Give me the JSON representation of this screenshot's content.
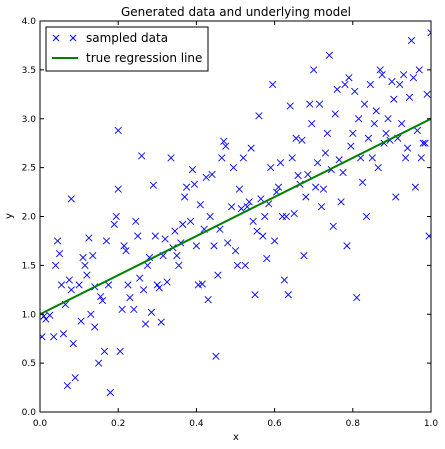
{
  "chart_data": {
    "type": "scatter",
    "title": "Generated data and underlying model",
    "xlabel": "x",
    "ylabel": "y",
    "xlim": [
      0.0,
      1.0
    ],
    "ylim": [
      0.0,
      4.0
    ],
    "xticks": [
      "0.0",
      "0.2",
      "0.4",
      "0.6",
      "0.8",
      "1.0"
    ],
    "yticks": [
      "0.0",
      "0.5",
      "1.0",
      "1.5",
      "2.0",
      "2.5",
      "3.0",
      "3.5",
      "4.0"
    ],
    "grid": false,
    "legend_position": "top-left",
    "series": [
      {
        "name": "sampled data",
        "kind": "scatter",
        "marker": "x",
        "color": "#0000ff",
        "points": [
          [
            0.005,
            0.77
          ],
          [
            0.01,
            0.98
          ],
          [
            0.015,
            0.95
          ],
          [
            0.025,
            0.99
          ],
          [
            0.035,
            0.77
          ],
          [
            0.04,
            1.5
          ],
          [
            0.045,
            1.75
          ],
          [
            0.05,
            1.62
          ],
          [
            0.055,
            1.3
          ],
          [
            0.06,
            0.8
          ],
          [
            0.065,
            1.1
          ],
          [
            0.07,
            0.27
          ],
          [
            0.075,
            1.35
          ],
          [
            0.08,
            1.25
          ],
          [
            0.085,
            0.7
          ],
          [
            0.08,
            2.18
          ],
          [
            0.09,
            0.35
          ],
          [
            0.1,
            1.3
          ],
          [
            0.105,
            0.93
          ],
          [
            0.11,
            1.58
          ],
          [
            0.115,
            1.5
          ],
          [
            0.12,
            1.4
          ],
          [
            0.125,
            1.78
          ],
          [
            0.13,
            1.0
          ],
          [
            0.135,
            1.6
          ],
          [
            0.14,
            1.28
          ],
          [
            0.14,
            0.87
          ],
          [
            0.15,
            0.5
          ],
          [
            0.155,
            1.18
          ],
          [
            0.16,
            1.14
          ],
          [
            0.165,
            0.62
          ],
          [
            0.17,
            1.75
          ],
          [
            0.175,
            1.3
          ],
          [
            0.18,
            0.2
          ],
          [
            0.19,
            1.92
          ],
          [
            0.195,
            2.0
          ],
          [
            0.2,
            2.28
          ],
          [
            0.2,
            2.88
          ],
          [
            0.205,
            0.62
          ],
          [
            0.21,
            1.05
          ],
          [
            0.215,
            1.7
          ],
          [
            0.22,
            1.65
          ],
          [
            0.225,
            1.3
          ],
          [
            0.23,
            1.17
          ],
          [
            0.24,
            1.05
          ],
          [
            0.245,
            1.95
          ],
          [
            0.25,
            1.8
          ],
          [
            0.255,
            1.37
          ],
          [
            0.26,
            2.62
          ],
          [
            0.265,
            1.25
          ],
          [
            0.27,
            0.9
          ],
          [
            0.275,
            1.5
          ],
          [
            0.28,
            1.58
          ],
          [
            0.285,
            1.02
          ],
          [
            0.29,
            2.32
          ],
          [
            0.295,
            1.8
          ],
          [
            0.3,
            1.3
          ],
          [
            0.305,
            1.27
          ],
          [
            0.31,
            0.92
          ],
          [
            0.315,
            1.6
          ],
          [
            0.32,
            1.77
          ],
          [
            0.325,
            1.33
          ],
          [
            0.335,
            2.6
          ],
          [
            0.34,
            1.68
          ],
          [
            0.345,
            1.85
          ],
          [
            0.35,
            1.6
          ],
          [
            0.355,
            1.5
          ],
          [
            0.36,
            1.73
          ],
          [
            0.365,
            1.92
          ],
          [
            0.37,
            2.2
          ],
          [
            0.375,
            2.3
          ],
          [
            0.385,
            1.95
          ],
          [
            0.39,
            2.48
          ],
          [
            0.395,
            2.33
          ],
          [
            0.4,
            1.7
          ],
          [
            0.405,
            1.3
          ],
          [
            0.41,
            2.12
          ],
          [
            0.415,
            1.31
          ],
          [
            0.42,
            1.87
          ],
          [
            0.425,
            2.4
          ],
          [
            0.43,
            1.15
          ],
          [
            0.435,
            2.0
          ],
          [
            0.44,
            2.43
          ],
          [
            0.445,
            1.7
          ],
          [
            0.45,
            0.57
          ],
          [
            0.455,
            1.4
          ],
          [
            0.46,
            1.87
          ],
          [
            0.465,
            2.6
          ],
          [
            0.47,
            2.77
          ],
          [
            0.475,
            2.72
          ],
          [
            0.48,
            1.73
          ],
          [
            0.49,
            2.1
          ],
          [
            0.495,
            2.5
          ],
          [
            0.5,
            1.65
          ],
          [
            0.505,
            1.5
          ],
          [
            0.51,
            2.28
          ],
          [
            0.515,
            2.08
          ],
          [
            0.52,
            2.6
          ],
          [
            0.525,
            1.5
          ],
          [
            0.53,
            2.1
          ],
          [
            0.535,
            2.15
          ],
          [
            0.54,
            2.7
          ],
          [
            0.545,
            1.95
          ],
          [
            0.55,
            1.2
          ],
          [
            0.555,
            1.85
          ],
          [
            0.56,
            3.03
          ],
          [
            0.565,
            2.18
          ],
          [
            0.57,
            1.8
          ],
          [
            0.575,
            2.0
          ],
          [
            0.58,
            1.57
          ],
          [
            0.585,
            2.13
          ],
          [
            0.59,
            2.5
          ],
          [
            0.595,
            3.35
          ],
          [
            0.6,
            1.75
          ],
          [
            0.605,
            2.25
          ],
          [
            0.61,
            2.3
          ],
          [
            0.615,
            2.55
          ],
          [
            0.62,
            2.0
          ],
          [
            0.625,
            1.35
          ],
          [
            0.63,
            2.0
          ],
          [
            0.635,
            1.2
          ],
          [
            0.64,
            3.13
          ],
          [
            0.645,
            2.6
          ],
          [
            0.65,
            2.03
          ],
          [
            0.655,
            2.8
          ],
          [
            0.66,
            2.42
          ],
          [
            0.665,
            2.33
          ],
          [
            0.67,
            2.78
          ],
          [
            0.675,
            1.6
          ],
          [
            0.68,
            2.2
          ],
          [
            0.685,
            2.43
          ],
          [
            0.69,
            3.15
          ],
          [
            0.695,
            2.95
          ],
          [
            0.7,
            3.5
          ],
          [
            0.705,
            2.3
          ],
          [
            0.71,
            2.55
          ],
          [
            0.715,
            3.15
          ],
          [
            0.72,
            2.1
          ],
          [
            0.725,
            2.28
          ],
          [
            0.73,
            2.65
          ],
          [
            0.735,
            2.85
          ],
          [
            0.74,
            3.65
          ],
          [
            0.745,
            2.48
          ],
          [
            0.75,
            1.9
          ],
          [
            0.755,
            3.05
          ],
          [
            0.76,
            3.3
          ],
          [
            0.765,
            2.58
          ],
          [
            0.77,
            2.15
          ],
          [
            0.775,
            2.45
          ],
          [
            0.78,
            3.35
          ],
          [
            0.785,
            1.7
          ],
          [
            0.79,
            3.42
          ],
          [
            0.795,
            2.72
          ],
          [
            0.8,
            2.85
          ],
          [
            0.805,
            3.28
          ],
          [
            0.81,
            1.17
          ],
          [
            0.815,
            3.0
          ],
          [
            0.82,
            2.6
          ],
          [
            0.825,
            2.35
          ],
          [
            0.83,
            3.15
          ],
          [
            0.835,
            2.0
          ],
          [
            0.84,
            2.8
          ],
          [
            0.845,
            3.35
          ],
          [
            0.85,
            2.6
          ],
          [
            0.855,
            2.95
          ],
          [
            0.86,
            3.08
          ],
          [
            0.865,
            2.5
          ],
          [
            0.87,
            3.5
          ],
          [
            0.875,
            3.45
          ],
          [
            0.88,
            2.75
          ],
          [
            0.885,
            2.85
          ],
          [
            0.89,
            3.0
          ],
          [
            0.895,
            2.78
          ],
          [
            0.9,
            3.38
          ],
          [
            0.905,
            3.2
          ],
          [
            0.91,
            2.2
          ],
          [
            0.915,
            2.8
          ],
          [
            0.92,
            3.35
          ],
          [
            0.925,
            2.95
          ],
          [
            0.93,
            3.45
          ],
          [
            0.935,
            2.6
          ],
          [
            0.94,
            2.7
          ],
          [
            0.945,
            3.22
          ],
          [
            0.95,
            3.8
          ],
          [
            0.955,
            3.42
          ],
          [
            0.96,
            2.3
          ],
          [
            0.965,
            2.88
          ],
          [
            0.97,
            3.5
          ],
          [
            0.975,
            2.6
          ],
          [
            0.98,
            2.75
          ],
          [
            0.985,
            2.75
          ],
          [
            0.99,
            3.25
          ],
          [
            0.995,
            1.8
          ],
          [
            1.0,
            3.88
          ]
        ]
      },
      {
        "name": "true regression line",
        "kind": "line",
        "color": "#008000",
        "x": [
          0.0,
          1.0
        ],
        "y": [
          1.0,
          3.0
        ]
      }
    ]
  }
}
